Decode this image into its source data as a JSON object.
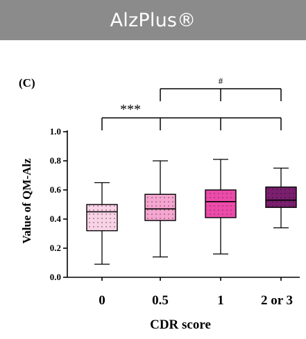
{
  "header": {
    "title": "AlzPlus®"
  },
  "chart_data": {
    "type": "box",
    "panel_label": "(C)",
    "xlabel": "CDR score",
    "ylabel": "Value of QM-Alz",
    "ylim": [
      0.0,
      1.0
    ],
    "yticks": [
      "0.0",
      "0.2",
      "0.4",
      "0.6",
      "0.8",
      "1.0"
    ],
    "categories": [
      "0",
      "0.5",
      "1",
      "2 or 3"
    ],
    "boxes": [
      {
        "category": "0",
        "min": 0.09,
        "q1": 0.32,
        "median": 0.45,
        "q3": 0.5,
        "max": 0.65,
        "color": "#f8d3e6"
      },
      {
        "category": "0.5",
        "min": 0.14,
        "q1": 0.39,
        "median": 0.47,
        "q3": 0.57,
        "max": 0.8,
        "color": "#f4a6d0"
      },
      {
        "category": "1",
        "min": 0.16,
        "q1": 0.41,
        "median": 0.52,
        "q3": 0.6,
        "max": 0.81,
        "color": "#ec4aa9"
      },
      {
        "category": "2 or 3",
        "min": 0.34,
        "q1": 0.48,
        "median": 0.53,
        "q3": 0.62,
        "max": 0.75,
        "color": "#7a1f6e"
      }
    ],
    "significance": [
      {
        "label": "***",
        "from": "0",
        "to": [
          "0.5",
          "1",
          "2 or 3"
        ]
      },
      {
        "label": "#",
        "from": "0.5",
        "to": [
          "1",
          "2 or 3"
        ]
      }
    ]
  }
}
